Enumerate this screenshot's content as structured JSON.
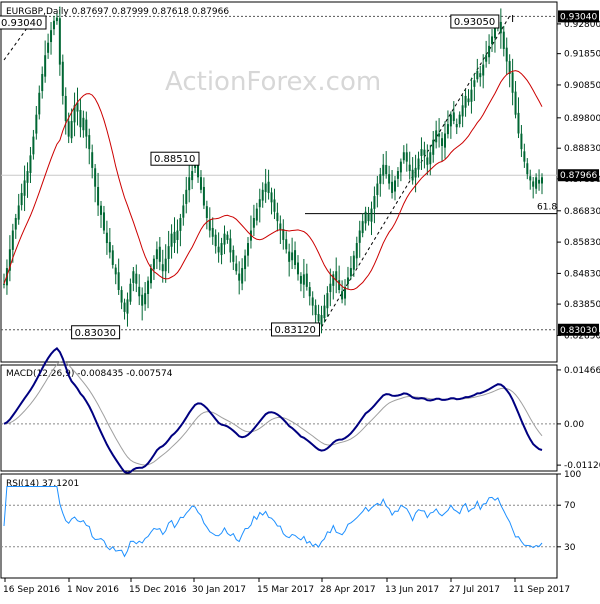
{
  "chart_data": [
    {
      "type": "candlestick",
      "title": "EURGBP,Daily  0.87697  0.87999  0.87618  0.87966",
      "symbol": "EURGBP,Daily",
      "ohlc_header": [
        "0.87697",
        "0.87999",
        "0.87618",
        "0.87966"
      ],
      "watermark": "ActionForex.com",
      "ylim": [
        0.82,
        0.935
      ],
      "y_ticks": [
        "0.92800",
        "0.91850",
        "0.90850",
        "0.89800",
        "0.88830",
        "0.87850",
        "0.86830",
        "0.85830",
        "0.84830",
        "0.83850",
        "0.82850"
      ],
      "last_price": "0.87966",
      "last_price_value": 0.87966,
      "levels": [
        {
          "label": "0.93040",
          "value": 0.9304
        },
        {
          "label": "0.83030",
          "value": 0.8303
        }
      ],
      "fib_label": "61.8",
      "fib_value": 0.8674,
      "box_labels": [
        {
          "text": "0.93040",
          "value": 0.9304,
          "index": 0
        },
        {
          "text": "0.88510",
          "value": 0.8851,
          "index": 67
        },
        {
          "text": "0.83030",
          "value": 0.8303,
          "index": 40
        },
        {
          "text": "0.83120",
          "value": 0.8312,
          "index": 108
        },
        {
          "text": "0.93050",
          "value": 0.9305,
          "index": 169
        }
      ],
      "x_categories": [
        "16 Sep 2016",
        "1 Nov 2016",
        "15 Dec 2016",
        "30 Jan 2017",
        "15 Mar 2017",
        "28 Apr 2017",
        "13 Jun 2017",
        "27 Jul 2017",
        "11 Sep 2017"
      ],
      "close_series": [
        0.845,
        0.85,
        0.856,
        0.862,
        0.866,
        0.87,
        0.874,
        0.878,
        0.881,
        0.886,
        0.892,
        0.899,
        0.906,
        0.912,
        0.918,
        0.922,
        0.926,
        0.929,
        0.93,
        0.915,
        0.905,
        0.897,
        0.892,
        0.897,
        0.902,
        0.9,
        0.895,
        0.898,
        0.892,
        0.888,
        0.882,
        0.876,
        0.87,
        0.867,
        0.862,
        0.858,
        0.855,
        0.851,
        0.848,
        0.843,
        0.839,
        0.836,
        0.84,
        0.845,
        0.849,
        0.845,
        0.841,
        0.838,
        0.842,
        0.846,
        0.85,
        0.853,
        0.856,
        0.852,
        0.849,
        0.853,
        0.857,
        0.861,
        0.858,
        0.862,
        0.866,
        0.87,
        0.875,
        0.879,
        0.881,
        0.883,
        0.879,
        0.875,
        0.87,
        0.866,
        0.862,
        0.86,
        0.857,
        0.855,
        0.858,
        0.861,
        0.859,
        0.855,
        0.852,
        0.849,
        0.846,
        0.85,
        0.854,
        0.858,
        0.862,
        0.866,
        0.869,
        0.872,
        0.875,
        0.877,
        0.874,
        0.871,
        0.868,
        0.865,
        0.862,
        0.859,
        0.856,
        0.852,
        0.855,
        0.851,
        0.848,
        0.845,
        0.848,
        0.844,
        0.841,
        0.838,
        0.835,
        0.833,
        0.835,
        0.838,
        0.842,
        0.845,
        0.848,
        0.846,
        0.843,
        0.84,
        0.844,
        0.847,
        0.85,
        0.854,
        0.858,
        0.862,
        0.865,
        0.868,
        0.865,
        0.869,
        0.873,
        0.877,
        0.88,
        0.883,
        0.88,
        0.877,
        0.874,
        0.878,
        0.881,
        0.884,
        0.887,
        0.884,
        0.881,
        0.878,
        0.882,
        0.885,
        0.888,
        0.886,
        0.883,
        0.887,
        0.891,
        0.894,
        0.892,
        0.889,
        0.893,
        0.896,
        0.899,
        0.897,
        0.895,
        0.899,
        0.902,
        0.905,
        0.903,
        0.907,
        0.91,
        0.913,
        0.911,
        0.915,
        0.918,
        0.921,
        0.924,
        0.927,
        0.929,
        0.925,
        0.92,
        0.916,
        0.912,
        0.906,
        0.899,
        0.893,
        0.888,
        0.884,
        0.88,
        0.878,
        0.876,
        0.879,
        0.877,
        0.879
      ],
      "ma_series_color": "#cc0000",
      "candle_color": "#006633"
    },
    {
      "type": "line",
      "title": "MACD(12,26,9) -0.008435 -0.007574",
      "ylim": [
        -0.0128,
        0.016
      ],
      "y_ticks": [
        {
          "label": "0.014661",
          "value": 0.014661
        },
        {
          "label": "0.00",
          "value": 0.0
        },
        {
          "label": "-0.011202",
          "value": -0.011202
        }
      ],
      "macd_color": "#000080",
      "signal_color": "#a0a0a0"
    },
    {
      "type": "line",
      "title": "RSI(14) 37.1201",
      "ylim": [
        0,
        100
      ],
      "y_ticks": [
        {
          "label": "100",
          "value": 100
        },
        {
          "label": "70",
          "value": 70
        },
        {
          "label": "30",
          "value": 30
        },
        {
          "label": "0",
          "value": 0
        }
      ],
      "rsi_color": "#1e90ff"
    }
  ]
}
